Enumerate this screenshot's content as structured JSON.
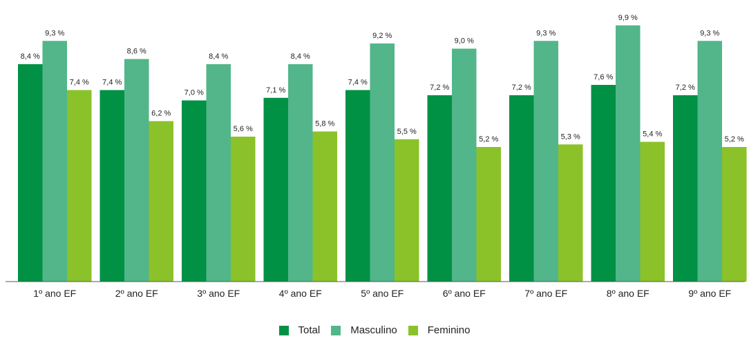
{
  "chart_data": {
    "type": "bar",
    "categories": [
      "1º ano EF",
      "2º ano EF",
      "3º ano EF",
      "4º ano EF",
      "5º ano EF",
      "6º ano EF",
      "7º ano EF",
      "8º ano EF",
      "9º ano EF"
    ],
    "series": [
      {
        "name": "Total",
        "color": "#009145",
        "values": [
          8.4,
          7.4,
          7.0,
          7.1,
          7.4,
          7.2,
          7.2,
          7.6,
          7.2
        ],
        "labels": [
          "8,4 %",
          "7,4 %",
          "7,0 %",
          "7,1 %",
          "7,4 %",
          "7,2 %",
          "7,2 %",
          "7,6 %",
          "7,2 %"
        ]
      },
      {
        "name": "Masculino",
        "color": "#52B68A",
        "values": [
          9.3,
          8.6,
          8.4,
          8.4,
          9.2,
          9.0,
          9.3,
          9.9,
          9.3
        ],
        "labels": [
          "9,3 %",
          "8,6 %",
          "8,4 %",
          "8,4 %",
          "9,2 %",
          "9,0 %",
          "9,3 %",
          "9,9 %",
          "9,3 %"
        ]
      },
      {
        "name": "Feminino",
        "color": "#8BC22A",
        "values": [
          7.4,
          6.2,
          5.6,
          5.8,
          5.5,
          5.2,
          5.3,
          5.4,
          5.2
        ],
        "labels": [
          "7,4 %",
          "6,2 %",
          "5,6 %",
          "5,8 %",
          "5,5 %",
          "5,2 %",
          "5,3 %",
          "5,4 %",
          "5,2 %"
        ]
      }
    ],
    "ylim": [
      0,
      10
    ],
    "legend_position": "bottom-center",
    "grid": false
  }
}
